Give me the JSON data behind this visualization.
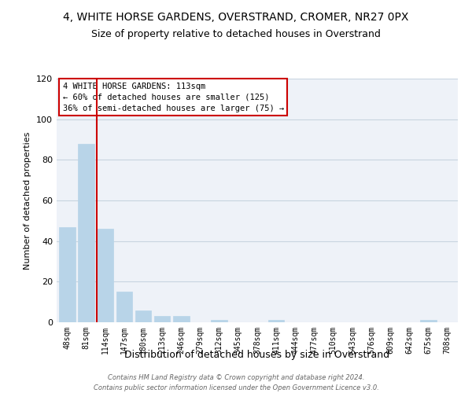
{
  "title": "4, WHITE HORSE GARDENS, OVERSTRAND, CROMER, NR27 0PX",
  "subtitle": "Size of property relative to detached houses in Overstrand",
  "bar_labels": [
    "48sqm",
    "81sqm",
    "114sqm",
    "147sqm",
    "180sqm",
    "213sqm",
    "246sqm",
    "279sqm",
    "312sqm",
    "345sqm",
    "378sqm",
    "411sqm",
    "444sqm",
    "477sqm",
    "510sqm",
    "543sqm",
    "576sqm",
    "609sqm",
    "642sqm",
    "675sqm",
    "708sqm"
  ],
  "bar_values": [
    47,
    88,
    46,
    15,
    6,
    3,
    3,
    0,
    1,
    0,
    0,
    1,
    0,
    0,
    0,
    0,
    0,
    0,
    0,
    1,
    0
  ],
  "bar_color": "#b8d4e8",
  "vline_color": "#cc0000",
  "vline_x_index": 2,
  "ylabel": "Number of detached properties",
  "xlabel": "Distribution of detached houses by size in Overstrand",
  "ylim": [
    0,
    120
  ],
  "yticks": [
    0,
    20,
    40,
    60,
    80,
    100,
    120
  ],
  "annotation_line1": "4 WHITE HORSE GARDENS: 113sqm",
  "annotation_line2": "← 60% of detached houses are smaller (125)",
  "annotation_line3": "36% of semi-detached houses are larger (75) →",
  "footer_line1": "Contains HM Land Registry data © Crown copyright and database right 2024.",
  "footer_line2": "Contains public sector information licensed under the Open Government Licence v3.0.",
  "grid_color": "#c8d4e0",
  "bg_color": "#eef2f8"
}
